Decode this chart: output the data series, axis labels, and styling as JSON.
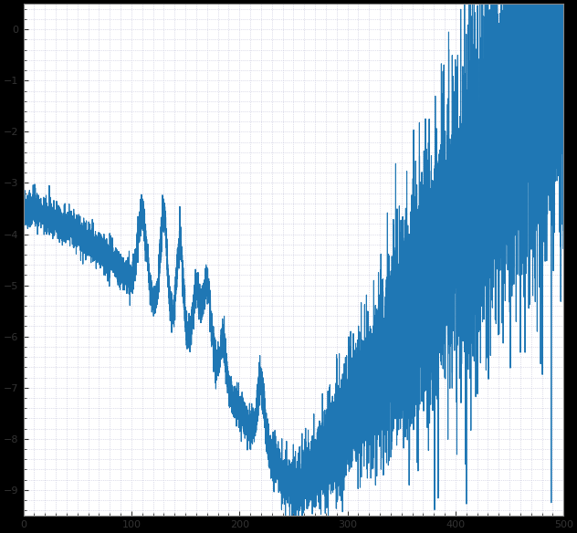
{
  "line_color": "#1f77b4",
  "line_width": 0.8,
  "background_color": "#ffffff",
  "fig_background": "#000000",
  "grid_color": "#c0c0d8",
  "figsize": [
    6.32,
    5.84
  ],
  "dpi": 100,
  "xlim": [
    0.0,
    500.0
  ],
  "ylim": [
    -9.5,
    0.5
  ],
  "seed": 42
}
